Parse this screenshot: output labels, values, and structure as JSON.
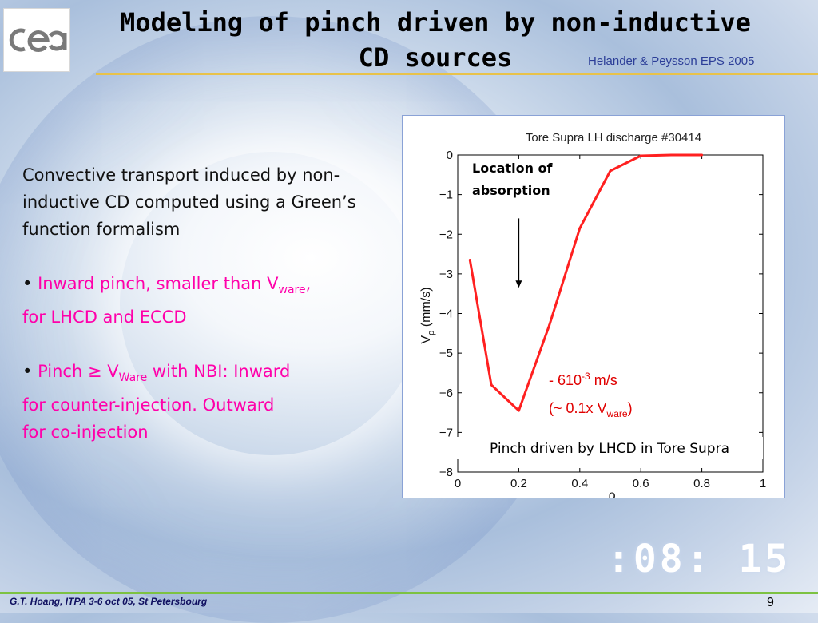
{
  "slide": {
    "title_line1": "Modeling of pinch driven by non-inductive",
    "title_line2": "CD sources",
    "reference": "Helander & Peysson EPS 2005",
    "footer": "G.T. Hoang, ITPA 3-6 oct 05, St Petersbourg",
    "page_number": "9",
    "background_clock": ":08: 15"
  },
  "body": {
    "intro": "Convective transport induced by non-inductive CD computed using a Green’s function formalism",
    "bullet_char": "•",
    "b1_text": "Inward pinch, smaller than V",
    "b1_sub": "ware",
    "b1_end": ",",
    "b1_tail": "for LHCD and ECCD",
    "b2_text": "Pinch",
    "b2_sym": "≥",
    "b2_v": "V",
    "b2_sub": "Ware",
    "b2_rest": " with NBI: Inward",
    "b2_tail1": "for counter-injection. Outward",
    "b2_tail2": "for co-injection"
  },
  "chart_data": {
    "type": "line",
    "title": "Tore Supra LH discharge #30414",
    "xlabel": "ρ",
    "ylabel_main": "V",
    "ylabel_sub": "ρ",
    "ylabel_unit": " (mm/s)",
    "xlim": [
      0,
      1
    ],
    "ylim": [
      -8,
      0
    ],
    "xticks": [
      "0",
      "0.2",
      "0.4",
      "0.6",
      "0.8",
      "1"
    ],
    "yticks": [
      "0",
      "−1",
      "−2",
      "−3",
      "−4",
      "−5",
      "−6",
      "−7",
      "−8"
    ],
    "grid": false,
    "series": [
      {
        "color": "#ff2020",
        "x": [
          0.04,
          0.11,
          0.2,
          0.3,
          0.4,
          0.5,
          0.6,
          0.7,
          0.8
        ],
        "y": [
          -2.65,
          -5.8,
          -6.45,
          -4.3,
          -1.85,
          -0.4,
          -0.02,
          0.0,
          0.0
        ]
      }
    ],
    "annotations": {
      "absorption_line1": "Location of",
      "absorption_line2": "absorption",
      "value_prefix": "- 610",
      "value_exp": "-3",
      "value_unit": " m/s",
      "ratio_prefix": "(~ 0.1x V",
      "ratio_sub": "ware",
      "ratio_suffix": ")",
      "caption": "Pinch driven by LHCD in Tore Supra"
    },
    "arrow_x": 0.2,
    "arrow_y_from": -1.6,
    "arrow_y_to": -3.35,
    "annotation_color": "#e00000"
  }
}
